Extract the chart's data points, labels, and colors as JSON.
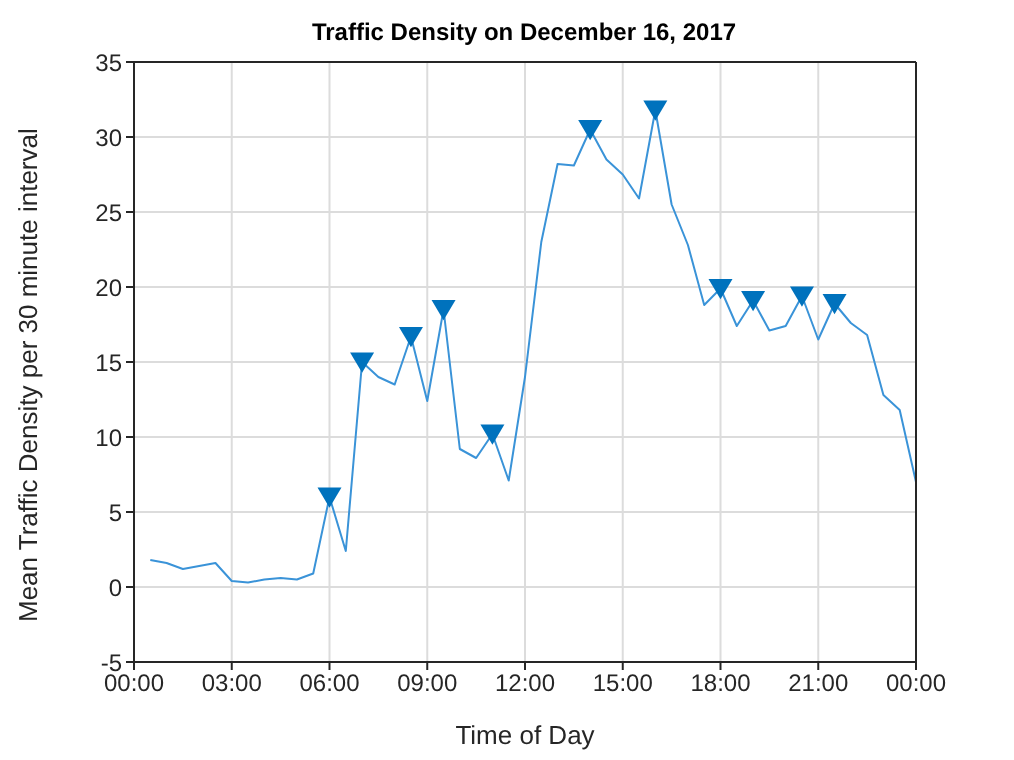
{
  "chart_data": {
    "type": "line",
    "title": "Traffic Density on December 16, 2017",
    "xlabel": "Time of Day",
    "ylabel": "Mean Traffic Density per 30 minute interval",
    "xlim": [
      0,
      24
    ],
    "xticks": [
      {
        "value": 0,
        "label": "00:00"
      },
      {
        "value": 3,
        "label": "03:00"
      },
      {
        "value": 6,
        "label": "06:00"
      },
      {
        "value": 9,
        "label": "09:00"
      },
      {
        "value": 12,
        "label": "12:00"
      },
      {
        "value": 15,
        "label": "15:00"
      },
      {
        "value": 18,
        "label": "18:00"
      },
      {
        "value": 21,
        "label": "21:00"
      },
      {
        "value": 24,
        "label": "00:00"
      }
    ],
    "ylim": [
      -5,
      35
    ],
    "yticks": [
      -5,
      0,
      5,
      10,
      15,
      20,
      25,
      30,
      35
    ],
    "grid": true,
    "series": [
      {
        "marker": "none",
        "color": "#3a93d8",
        "x": [
          0.5,
          1,
          1.5,
          2,
          2.5,
          3,
          3.5,
          4,
          4.5,
          5,
          5.5,
          6,
          6.5,
          7,
          7.5,
          8,
          8.5,
          9,
          9.5,
          10,
          10.5,
          11,
          11.5,
          12,
          12.5,
          13,
          13.5,
          14,
          14.5,
          15,
          15.5,
          16,
          16.5,
          17,
          17.5,
          18,
          18.5,
          19,
          19.5,
          20,
          20.5,
          21,
          21.5,
          22,
          22.5,
          23,
          23.5,
          24
        ],
        "values": [
          1.8,
          1.6,
          1.2,
          1.4,
          1.6,
          0.4,
          0.3,
          0.5,
          0.6,
          0.5,
          0.9,
          6.0,
          2.4,
          15.0,
          14.0,
          13.5,
          16.7,
          12.4,
          18.5,
          9.2,
          8.6,
          10.2,
          7.1,
          14.0,
          23.0,
          28.2,
          28.1,
          30.5,
          28.5,
          27.5,
          25.9,
          31.8,
          25.5,
          22.8,
          18.8,
          19.9,
          17.4,
          19.1,
          17.1,
          17.4,
          19.4,
          16.5,
          18.9,
          17.6,
          16.8,
          12.8,
          11.8,
          7.0
        ]
      },
      {
        "type": "scatter",
        "marker": "triangle",
        "color": "#0072bd",
        "x": [
          6,
          7,
          8.5,
          9.5,
          11,
          14,
          16,
          18,
          19,
          20.5,
          21.5
        ],
        "values": [
          6.0,
          15.0,
          16.7,
          18.5,
          10.2,
          30.5,
          31.8,
          19.9,
          19.1,
          19.4,
          18.9
        ]
      }
    ]
  }
}
